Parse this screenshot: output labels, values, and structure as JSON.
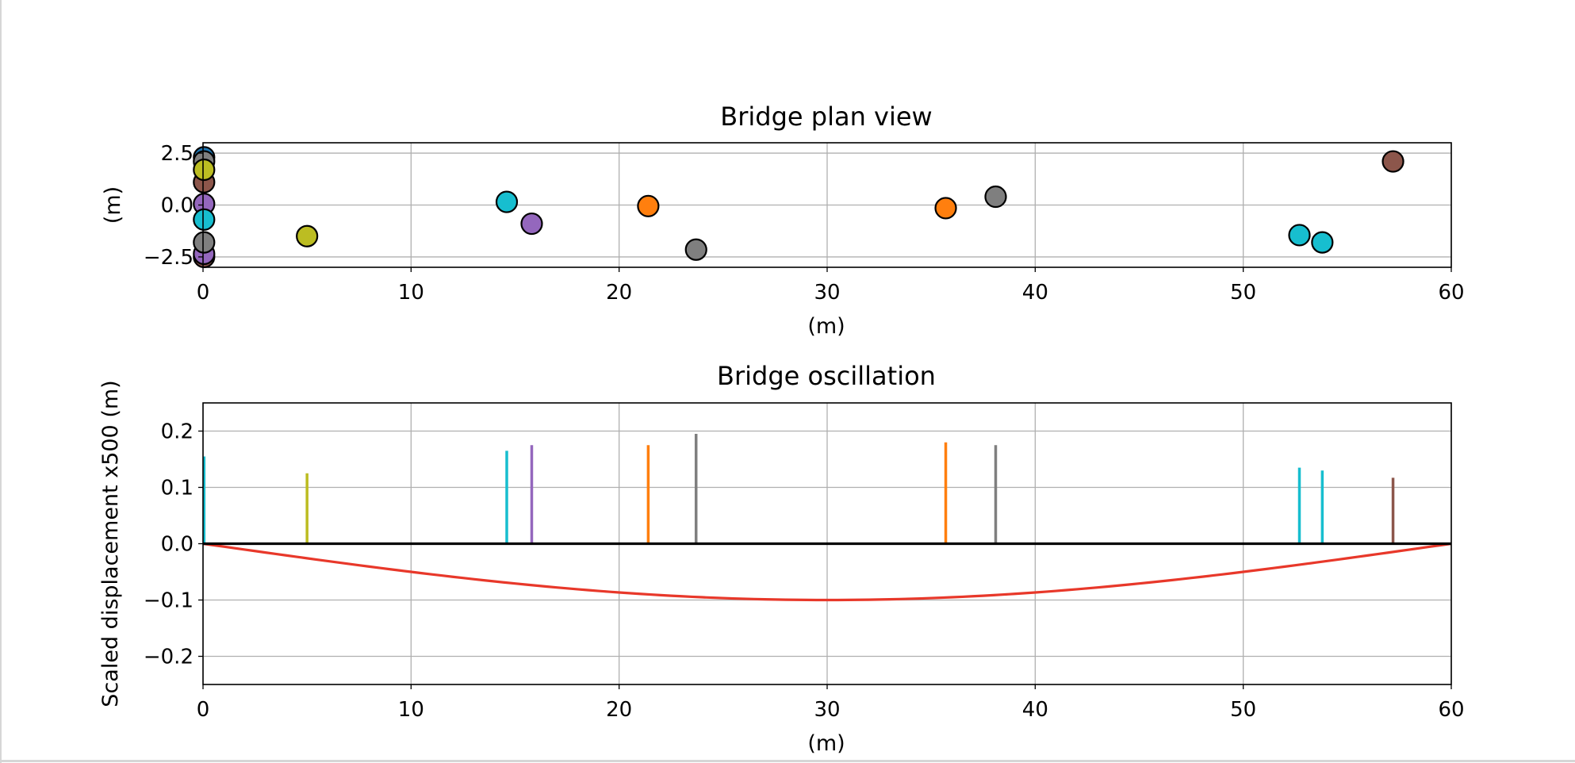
{
  "chart_data": [
    {
      "type": "scatter",
      "title": "Bridge plan view",
      "xlabel": "(m)",
      "ylabel": "(m)",
      "xlim": [
        0,
        60
      ],
      "ylim": [
        -3.0,
        3.0
      ],
      "xticks": [
        0,
        10,
        20,
        30,
        40,
        50,
        60
      ],
      "xtick_labels": [
        "0",
        "10",
        "20",
        "30",
        "40",
        "50",
        "60"
      ],
      "yticks": [
        2.5,
        0.0,
        -2.5
      ],
      "ytick_labels": [
        "2.5",
        "0.0",
        "−2.5"
      ],
      "grid": true,
      "points": [
        {
          "x": 0.05,
          "y": -2.5,
          "color": "#8c564b"
        },
        {
          "x": 0.05,
          "y": -2.35,
          "color": "#9467bd"
        },
        {
          "x": 0.05,
          "y": 2.3,
          "color": "#1f77b4"
        },
        {
          "x": 0.05,
          "y": 2.1,
          "color": "#7f7f7f"
        },
        {
          "x": 0.05,
          "y": 1.1,
          "color": "#8c564b"
        },
        {
          "x": 0.05,
          "y": 0.05,
          "color": "#9467bd"
        },
        {
          "x": 0.05,
          "y": -0.7,
          "color": "#17becf"
        },
        {
          "x": 0.05,
          "y": -1.8,
          "color": "#7f7f7f"
        },
        {
          "x": 0.05,
          "y": 1.7,
          "color": "#bcbd22"
        },
        {
          "x": 5.0,
          "y": -1.5,
          "color": "#bcbd22"
        },
        {
          "x": 14.6,
          "y": 0.15,
          "color": "#17becf"
        },
        {
          "x": 15.8,
          "y": -0.9,
          "color": "#9467bd"
        },
        {
          "x": 21.4,
          "y": -0.05,
          "color": "#ff7f0e"
        },
        {
          "x": 23.7,
          "y": -2.15,
          "color": "#7f7f7f"
        },
        {
          "x": 35.7,
          "y": -0.15,
          "color": "#ff7f0e"
        },
        {
          "x": 38.1,
          "y": 0.4,
          "color": "#7f7f7f"
        },
        {
          "x": 52.7,
          "y": -1.45,
          "color": "#17becf"
        },
        {
          "x": 53.8,
          "y": -1.8,
          "color": "#17becf"
        },
        {
          "x": 57.2,
          "y": 2.1,
          "color": "#8c564b"
        }
      ]
    },
    {
      "type": "line",
      "title": "Bridge oscillation",
      "xlabel": "(m)",
      "ylabel": "Scaled displacement x500 (m)",
      "xlim": [
        0,
        60
      ],
      "ylim": [
        -0.25,
        0.25
      ],
      "xticks": [
        0,
        10,
        20,
        30,
        40,
        50,
        60
      ],
      "xtick_labels": [
        "0",
        "10",
        "20",
        "30",
        "40",
        "50",
        "60"
      ],
      "yticks": [
        0.2,
        0.1,
        0.0,
        -0.1,
        -0.2
      ],
      "ytick_labels": [
        "0.2",
        "0.1",
        "0.0",
        "−0.1",
        "−0.2"
      ],
      "grid": true,
      "baseline": {
        "y": 0.0,
        "color": "#000000"
      },
      "deflection": {
        "type": "sine-half-wave",
        "amplitude": -0.1,
        "x_start": 0,
        "x_end": 60,
        "color": "#e8382a"
      },
      "bars": [
        {
          "x": 0.05,
          "value": 0.155,
          "color": "#17becf"
        },
        {
          "x": 5.0,
          "value": 0.125,
          "color": "#bcbd22"
        },
        {
          "x": 14.6,
          "value": 0.165,
          "color": "#17becf"
        },
        {
          "x": 15.8,
          "value": 0.175,
          "color": "#9467bd"
        },
        {
          "x": 21.4,
          "value": 0.175,
          "color": "#ff7f0e"
        },
        {
          "x": 23.7,
          "value": 0.195,
          "color": "#7f7f7f"
        },
        {
          "x": 35.7,
          "value": 0.18,
          "color": "#ff7f0e"
        },
        {
          "x": 38.1,
          "value": 0.175,
          "color": "#7f7f7f"
        },
        {
          "x": 52.7,
          "value": 0.135,
          "color": "#17becf"
        },
        {
          "x": 53.8,
          "value": 0.13,
          "color": "#17becf"
        },
        {
          "x": 57.2,
          "value": 0.117,
          "color": "#8c564b"
        }
      ]
    }
  ]
}
